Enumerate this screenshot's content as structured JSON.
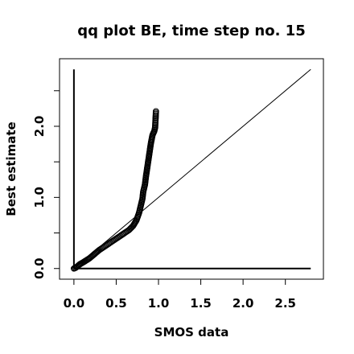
{
  "chart_data": {
    "type": "scatter",
    "title": "qq plot BE, time step no. 15",
    "xlabel": "SMOS data",
    "ylabel": "Best estimate",
    "xlim": [
      -0.17,
      2.95
    ],
    "ylim": [
      -0.15,
      2.95
    ],
    "x_ticks": [
      "0.0",
      "0.5",
      "1.0",
      "1.5",
      "2.0",
      "2.5"
    ],
    "x_tick_values": [
      0,
      0.5,
      1.0,
      1.5,
      2.0,
      2.5
    ],
    "y_ticks": [
      "0.0",
      "1.0",
      "2.0"
    ],
    "y_tick_values": [
      0,
      1.0,
      2.0
    ],
    "y_minor_tick_values": [
      0.5,
      1.5,
      2.5
    ],
    "reference_line": {
      "x": [
        0,
        2.8
      ],
      "y": [
        0,
        2.8
      ]
    },
    "axis_lines": {
      "vertical_x": 0,
      "horizontal_y": 0,
      "extent": 2.8
    },
    "grid": false,
    "legend": "none",
    "marker": "open-circle",
    "series": [
      {
        "values": [
          [
            0.0,
            0.0
          ],
          [
            0.02,
            0.01
          ],
          [
            0.03,
            0.02
          ],
          [
            0.05,
            0.04
          ],
          [
            0.07,
            0.06
          ],
          [
            0.1,
            0.08
          ],
          [
            0.14,
            0.11
          ],
          [
            0.18,
            0.14
          ],
          [
            0.22,
            0.18
          ],
          [
            0.26,
            0.22
          ],
          [
            0.3,
            0.26
          ],
          [
            0.35,
            0.3
          ],
          [
            0.4,
            0.34
          ],
          [
            0.45,
            0.38
          ],
          [
            0.5,
            0.42
          ],
          [
            0.55,
            0.46
          ],
          [
            0.6,
            0.5
          ],
          [
            0.65,
            0.54
          ],
          [
            0.7,
            0.6
          ],
          [
            0.74,
            0.68
          ],
          [
            0.77,
            0.78
          ],
          [
            0.79,
            0.88
          ],
          [
            0.81,
            0.98
          ],
          [
            0.82,
            1.08
          ],
          [
            0.84,
            1.18
          ],
          [
            0.85,
            1.28
          ],
          [
            0.86,
            1.36
          ],
          [
            0.87,
            1.44
          ],
          [
            0.88,
            1.52
          ],
          [
            0.89,
            1.6
          ],
          [
            0.9,
            1.68
          ],
          [
            0.91,
            1.76
          ],
          [
            0.92,
            1.82
          ],
          [
            0.93,
            1.88
          ],
          [
            0.95,
            1.93
          ],
          [
            0.96,
            1.98
          ],
          [
            0.97,
            2.21
          ]
        ]
      }
    ]
  }
}
